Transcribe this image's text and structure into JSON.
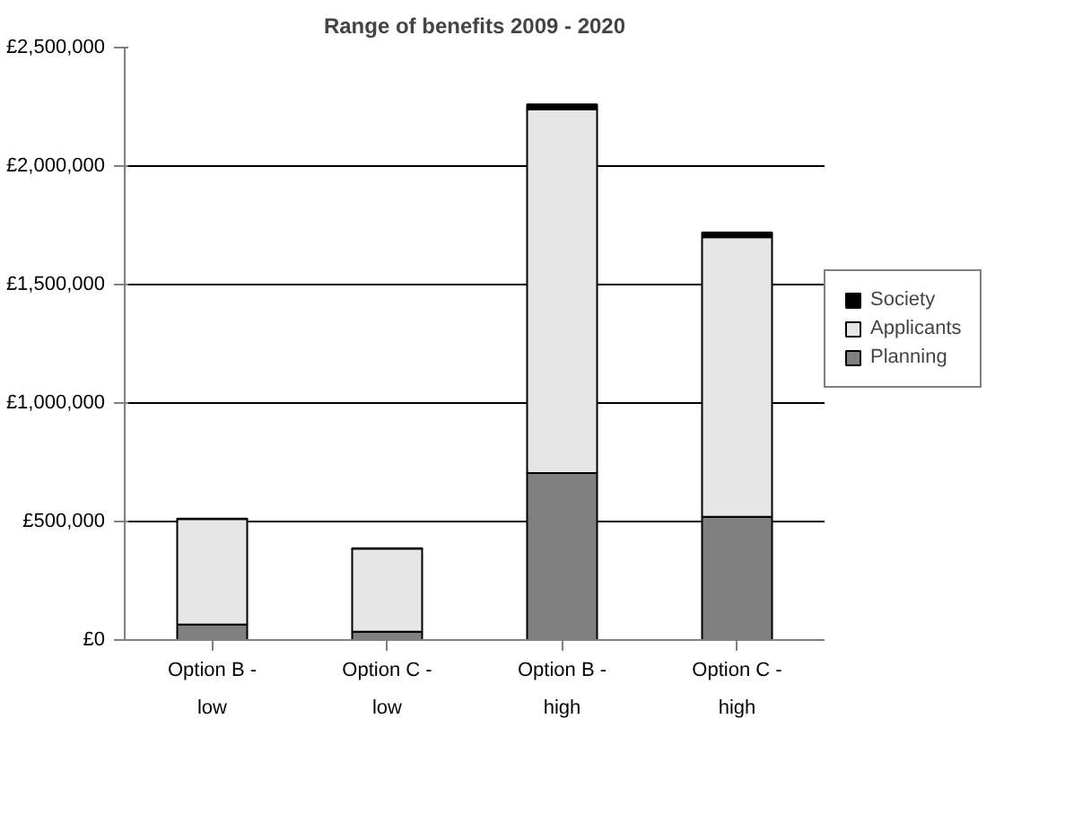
{
  "chart_data": {
    "type": "bar",
    "title": "Range of benefits 2009 - 2020",
    "stacked": true,
    "categories": [
      "Option B - low",
      "Option C - low",
      "Option B - high",
      "Option C - high"
    ],
    "series": [
      {
        "name": "Planning",
        "color": "#808080",
        "values": [
          65000,
          35000,
          705000,
          520000
        ]
      },
      {
        "name": "Applicants",
        "color": "#e6e6e6",
        "values": [
          445000,
          350000,
          1535000,
          1180000
        ]
      },
      {
        "name": "Society",
        "color": "#000000",
        "values": [
          2000,
          2000,
          20000,
          20000
        ]
      }
    ],
    "ylim": [
      0,
      2500000
    ],
    "yticks": [
      {
        "value": 0,
        "label": "£0"
      },
      {
        "value": 500000,
        "label": "£500,000"
      },
      {
        "value": 1000000,
        "label": "£1,000,000"
      },
      {
        "value": 1500000,
        "label": "£1,500,000"
      },
      {
        "value": 2000000,
        "label": "£2,000,000"
      },
      {
        "value": 2500000,
        "label": "£2,500,000"
      }
    ],
    "grid": "y",
    "legend": "right"
  }
}
